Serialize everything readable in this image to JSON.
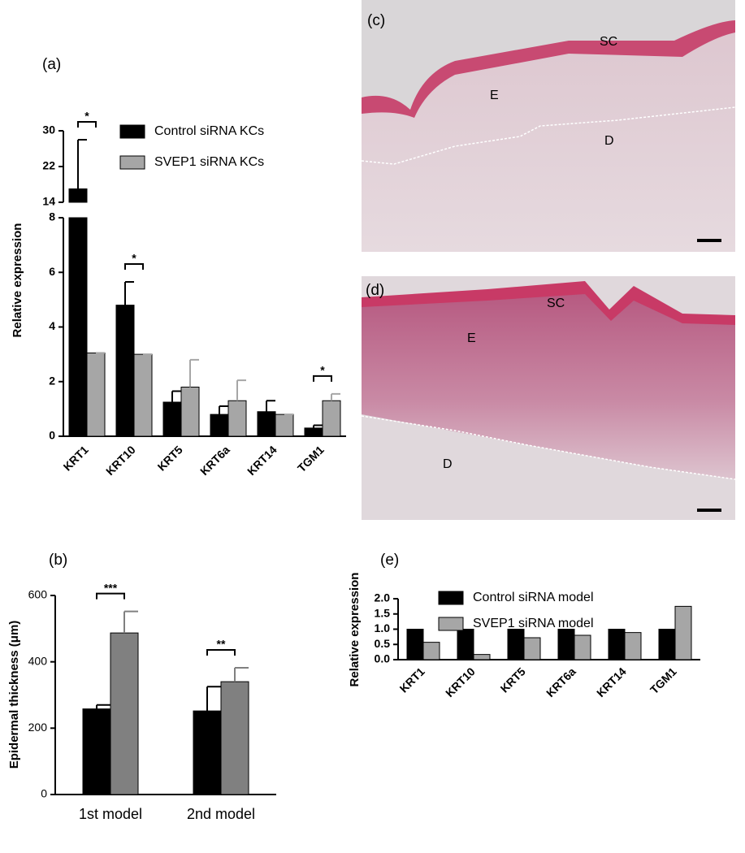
{
  "chart_data": [
    {
      "type": "bar",
      "title": "(a)",
      "ylabel": "Relative expression",
      "categories": [
        "KRT1",
        "KRT10",
        "KRT5",
        "KRT6a",
        "KRT14",
        "TGM1"
      ],
      "series": [
        {
          "name": "Control siRNA KCs",
          "color": "#000000",
          "values": [
            17,
            4.8,
            1.25,
            0.8,
            0.9,
            0.3
          ],
          "errors": [
            11,
            0.85,
            0.4,
            0.3,
            0.4,
            0.1
          ]
        },
        {
          "name": "SVEP1 siRNA KCs",
          "color": "#a6a6a6",
          "values": [
            3.05,
            3.0,
            1.8,
            1.3,
            0.8,
            1.3
          ],
          "errors": [
            0,
            0,
            1.0,
            0.75,
            0,
            0.25
          ]
        }
      ],
      "significance": [
        "*",
        "*",
        null,
        null,
        null,
        "*"
      ],
      "ylim": [
        0,
        8
      ],
      "yticks": [
        0,
        2,
        4,
        6,
        8
      ],
      "ylim_upper": [
        14,
        30
      ],
      "yticks_upper": [
        14,
        22,
        30
      ],
      "axis_break": true,
      "legend": "top-right"
    },
    {
      "type": "bar",
      "title": "(b)",
      "ylabel": "Epidermal thickness (μm)",
      "categories": [
        "1st model",
        "2nd model"
      ],
      "series": [
        {
          "color": "#000000",
          "values": [
            258,
            252
          ],
          "errors": [
            12,
            73
          ]
        },
        {
          "color": "#808080",
          "values": [
            487,
            340
          ],
          "errors": [
            65,
            42
          ]
        }
      ],
      "significance": [
        "***",
        "**"
      ],
      "ylim": [
        0,
        600
      ],
      "yticks": [
        0,
        200,
        400,
        600
      ]
    },
    {
      "type": "bar",
      "title": "(e)",
      "ylabel": "Relative expression",
      "categories": [
        "KRT1",
        "KRT10",
        "KRT5",
        "KRT6a",
        "KRT14",
        "TGM1"
      ],
      "series": [
        {
          "name": "Control siRNA model",
          "color": "#000000",
          "values": [
            1,
            1,
            1,
            1,
            1,
            1
          ]
        },
        {
          "name": "SVEP1 siRNA model",
          "color": "#a6a6a6",
          "values": [
            0.57,
            0.17,
            0.72,
            0.8,
            0.89,
            1.75
          ]
        }
      ],
      "ylim": [
        0,
        2
      ],
      "yticks": [
        {
          "value": 0,
          "label": "0.0"
        },
        {
          "value": 0.5,
          "label": "0.5"
        },
        {
          "value": 1,
          "label": "1.0"
        },
        {
          "value": 1.5,
          "label": "1.5"
        },
        {
          "value": 2,
          "label": "2.0"
        }
      ],
      "legend": "top-right"
    }
  ],
  "images": [
    {
      "label": "(c)",
      "regions": [
        "SC",
        "E",
        "D"
      ]
    },
    {
      "label": "(d)",
      "regions": [
        "SC",
        "E",
        "D"
      ]
    }
  ]
}
